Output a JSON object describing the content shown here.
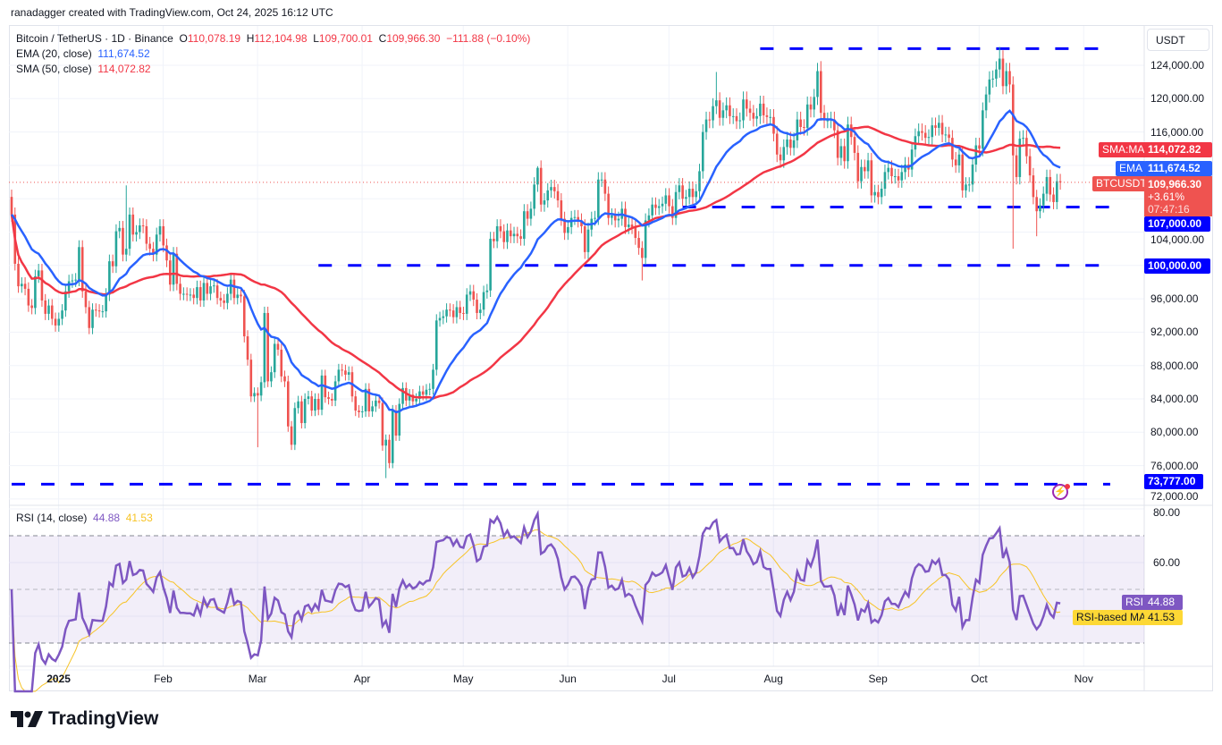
{
  "credit": "ranadagger created with TradingView.com, Oct 24, 2025 16:12 UTC",
  "legend": {
    "symbol": "Bitcoin / TetherUS · 1D · Binance",
    "o_label": "O",
    "o": "110,078.19",
    "h_label": "H",
    "h": "112,104.98",
    "l_label": "L",
    "l": "109,700.01",
    "c_label": "C",
    "c": "109,966.30",
    "change": "−111.88 (−0.10%)",
    "ema_label": "EMA (20, close)",
    "ema_value": "111,674.52",
    "sma_label": "SMA (50, close)",
    "sma_value": "114,072.82",
    "rsi_label": "RSI (14, close)",
    "rsi_value": "44.88",
    "rsi_ma_value": "41.53"
  },
  "axis": {
    "currency_button": "USDT",
    "price_ticks": [
      "124,000.00",
      "120,000.00",
      "116,000.00",
      "104,000.00",
      "96,000.00",
      "92,000.00",
      "88,000.00",
      "84,000.00",
      "80,000.00",
      "76,000.00",
      "72,000.00"
    ],
    "rsi_ticks": [
      "80.00",
      "60.00"
    ],
    "time_labels": [
      "2025",
      "Feb",
      "Mar",
      "Apr",
      "May",
      "Jun",
      "Jul",
      "Aug",
      "Sep",
      "Oct",
      "Nov"
    ]
  },
  "price_tags": {
    "sma_name": "SMA:MA",
    "sma_value": "114,072.82",
    "ema_name": "EMA",
    "ema_value": "111,674.52",
    "symbol_name": "BTCUSDT",
    "last_price": "109,966.30",
    "last_change": "+3.61%",
    "countdown": "07:47:16",
    "level_107k": "107,000.00",
    "level_100k": "100,000.00",
    "level_73777": "73,777.00",
    "rsi_name": "RSI",
    "rsi_value": "44.88",
    "rsi_ma_name": "RSI-based MA",
    "rsi_ma_value": "41.53"
  },
  "logo_text": "TradingView",
  "colors": {
    "up": "#26a69a",
    "down": "#ef5350",
    "ema": "#2962ff",
    "sma": "#f23645",
    "rsi": "#7e57c2",
    "rsi_ma": "#f7c325",
    "levels": "#0000ff"
  },
  "chart_data": {
    "type": "candlestick",
    "symbol": "BTCUSDT",
    "interval": "1D",
    "first_date": "2024-12-17",
    "last_date": "2025-10-24",
    "ylim": [
      72000,
      127000
    ],
    "close": [
      106100,
      100200,
      97500,
      97800,
      97200,
      95200,
      94900,
      98700,
      99400,
      95800,
      94200,
      95200,
      93600,
      92800,
      93600,
      94600,
      96900,
      98100,
      98200,
      98300,
      102200,
      96900,
      95000,
      92500,
      94700,
      94600,
      94500,
      94500,
      96500,
      100500,
      99900,
      104100,
      104500,
      101300,
      102000,
      106100,
      103700,
      104000,
      104800,
      104700,
      102600,
      102000,
      101300,
      103700,
      104700,
      102400,
      100600,
      97700,
      101400,
      97800,
      96600,
      96600,
      96500,
      96500,
      96100,
      97400,
      95800,
      97900,
      96600,
      97500,
      97600,
      96100,
      95800,
      95500,
      96600,
      98300,
      96100,
      96500,
      96300,
      91500,
      88700,
      84300,
      84700,
      84400,
      86000,
      94300,
      86100,
      87200,
      90600,
      89900,
      86700,
      86100,
      80700,
      78500,
      82900,
      83700,
      81100,
      84000,
      84300,
      82600,
      84000,
      82700,
      86800,
      84200,
      84000,
      83800,
      86100,
      87500,
      87400,
      86900,
      87200,
      84300,
      82600,
      82400,
      82500,
      85200,
      82500,
      83100,
      83800,
      83500,
      78400,
      79100,
      76300,
      82600,
      79600,
      83400,
      85300,
      83800,
      84500,
      83700,
      84000,
      84900,
      84500,
      85100,
      85200,
      87500,
      93400,
      93700,
      93900,
      94700,
      94600,
      93800,
      95000,
      94300,
      94200,
      96500,
      96900,
      95900,
      94300,
      94700,
      96800,
      97000,
      103200,
      102900,
      104700,
      104100,
      102800,
      104200,
      103500,
      103800,
      103500,
      103200,
      106500,
      105600,
      106800,
      109700,
      111700,
      107300,
      107800,
      109000,
      109400,
      108900,
      107800,
      105600,
      103900,
      104600,
      105700,
      105800,
      105400,
      104700,
      101600,
      104300,
      105600,
      105700,
      110300,
      110300,
      108600,
      105700,
      106000,
      105400,
      105600,
      106800,
      104600,
      104900,
      104600,
      103300,
      102100,
      100900,
      105400,
      106000,
      107300,
      106900,
      107100,
      107400,
      108400,
      107100,
      105700,
      108800,
      109600,
      108000,
      108200,
      109200,
      108200,
      108900,
      111300,
      116000,
      117500,
      117400,
      119100,
      119800,
      117700,
      118600,
      119200,
      117900,
      117900,
      117300,
      117400,
      119900,
      118800,
      118300,
      117600,
      117900,
      119400,
      118000,
      117800,
      117800,
      115800,
      113300,
      112600,
      114200,
      115100,
      114100,
      115000,
      117500,
      116600,
      116500,
      119300,
      118700,
      120200,
      123300,
      118300,
      117400,
      117400,
      117500,
      116200,
      112900,
      114300,
      112500,
      116900,
      115400,
      113500,
      110100,
      111800,
      111300,
      112600,
      108400,
      108800,
      108200,
      109200,
      111200,
      111700,
      110700,
      110700,
      110200,
      111200,
      112100,
      111500,
      113900,
      115500,
      116100,
      115900,
      115300,
      115400,
      116800,
      116500,
      117100,
      115700,
      115700,
      115300,
      112700,
      112000,
      113300,
      109000,
      109700,
      109700,
      112100,
      114400,
      114000,
      118600,
      120500,
      122300,
      122400,
      123500,
      124800,
      121500,
      123300,
      121700,
      113200,
      110600,
      115200,
      115300,
      113100,
      110800,
      108200,
      106500,
      107200,
      108600,
      110600,
      108500,
      107600,
      110100,
      109966
    ],
    "notable_wicks": [
      {
        "date": "2025-01-20",
        "high": 109600
      },
      {
        "date": "2025-04-07",
        "low": 74500
      },
      {
        "date": "2025-02-28",
        "low": 78200
      },
      {
        "date": "2025-05-22",
        "high": 111900
      },
      {
        "date": "2025-06-22",
        "low": 98200
      },
      {
        "date": "2025-07-14",
        "high": 123200
      },
      {
        "date": "2025-08-14",
        "high": 124500
      },
      {
        "date": "2025-10-06",
        "high": 126200
      },
      {
        "date": "2025-10-10",
        "low": 102000
      },
      {
        "date": "2025-10-17",
        "low": 103500
      }
    ],
    "indicators": [
      {
        "name": "EMA (20, close)",
        "last": 111674.52
      },
      {
        "name": "SMA (50, close)",
        "last": 114072.82
      },
      {
        "name": "RSI (14, close)",
        "last": 44.88,
        "ma_name": "RSI-based MA",
        "ma_last": 41.53,
        "bands": [
          70,
          50,
          30
        ],
        "ylim": [
          10,
          85
        ]
      }
    ],
    "horizontal_levels": [
      {
        "value": 126000,
        "from": "2025-07-27"
      },
      {
        "value": 107000,
        "from": "2025-07-04"
      },
      {
        "value": 100000,
        "from": "2025-03-18"
      },
      {
        "value": 73777,
        "from": "2024-12-17"
      }
    ],
    "grid": true
  }
}
